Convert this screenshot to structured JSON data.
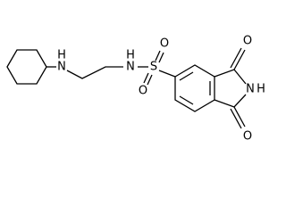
{
  "atoms": [
    {
      "label": "H"
    },
    {
      "label": "N"
    },
    {
      "label": "N"
    },
    {
      "label": "H"
    },
    {
      "label": "S"
    },
    {
      "label": "O"
    },
    {
      "label": "O"
    },
    {
      "label": "N"
    },
    {
      "label": "H"
    },
    {
      "label": "O"
    },
    {
      "label": "O"
    }
  ]
}
